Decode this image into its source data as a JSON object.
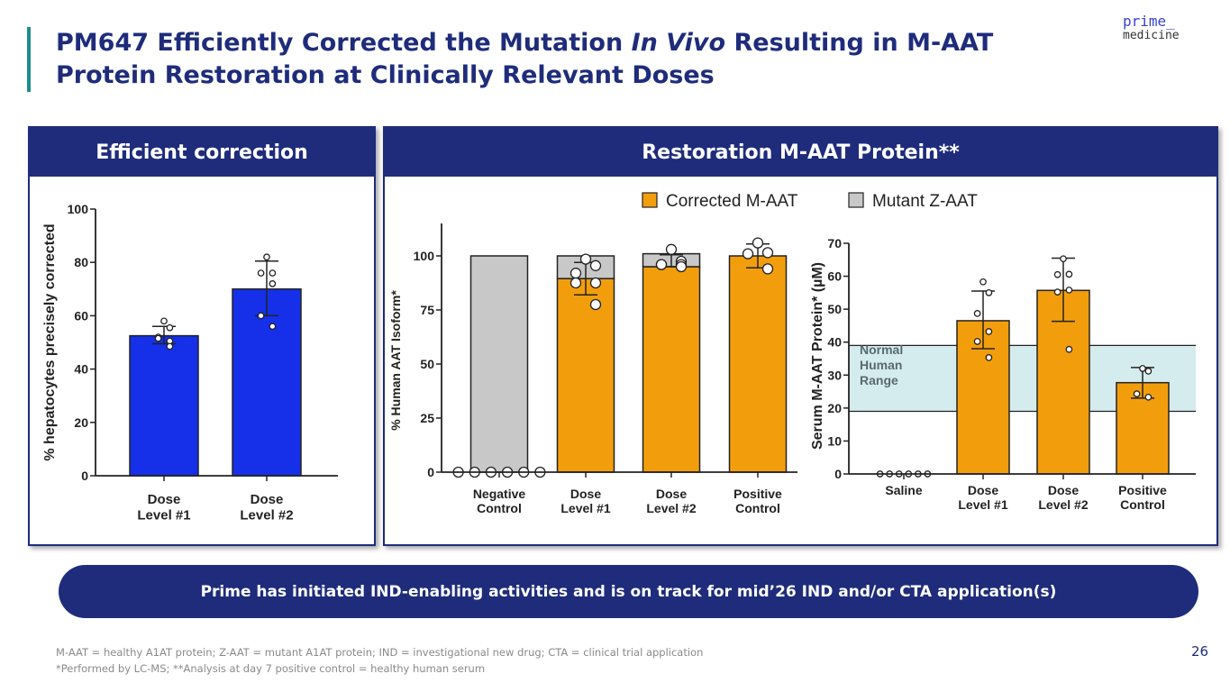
{
  "header": {
    "title_part1": "PM647 Efficiently Corrected the Mutation ",
    "title_italic": "In Vivo",
    "title_part2": " Resulting in M-AAT Protein Restoration at Clinically Relevant Doses",
    "logo_line1": "prime_",
    "logo_line2": "medicine"
  },
  "panels": {
    "left_title": "Efficient correction",
    "right_title": "Restoration M-AAT Protein**"
  },
  "banner": "Prime has initiated IND-enabling activities and is on track for mid’26 IND and/or CTA application(s)",
  "footnotes": [
    "M-AAT = healthy A1AT protein; Z-AAT = mutant A1AT protein; IND = investigational new drug; CTA = clinical trial application",
    "*Performed by LC-MS; **Analysis at day 7    positive control = healthy human serum"
  ],
  "page_number": "26",
  "colors": {
    "navy": "#1f2c7b",
    "blue_bar": "#1530e8",
    "orange": "#f29e0c",
    "gray": "#c8c8c8",
    "normal_range": "#d5ecee",
    "accent": "#1d8c8c"
  },
  "legend": [
    {
      "label": "Corrected M-AAT",
      "color": "#f29e0c"
    },
    {
      "label": "Mutant Z-AAT",
      "color": "#c8c8c8"
    }
  ],
  "chart_data": [
    {
      "type": "bar",
      "ylabel": "% hepatocytes precisely corrected",
      "ylim": [
        0,
        100
      ],
      "yticks": [
        0,
        20,
        40,
        60,
        80,
        100
      ],
      "categories": [
        "Dose\nLevel #1",
        "Dose\nLevel #2"
      ],
      "values": [
        52.5,
        70
      ],
      "error": [
        [
          49.5,
          56
        ],
        [
          60,
          80.5
        ]
      ],
      "points": [
        [
          58,
          55.5,
          52,
          50.5,
          51.5,
          48.5
        ],
        [
          82,
          76,
          76,
          72,
          60,
          56
        ]
      ],
      "color": "#1530e8"
    },
    {
      "type": "bar",
      "stacked": true,
      "ylabel": "% Human AAT Isoform*",
      "ylim": [
        0,
        115
      ],
      "yticks": [
        0,
        25,
        50,
        75,
        100
      ],
      "categories": [
        "Negative\nControl",
        "Dose\nLevel #1",
        "Dose\nLevel #2",
        "Positive\nControl"
      ],
      "series": [
        {
          "name": "Corrected M-AAT",
          "values": [
            0,
            89.5,
            95,
            100
          ]
        },
        {
          "name": "Mutant Z-AAT",
          "values": [
            100,
            10.5,
            6,
            0
          ]
        }
      ],
      "error": [
        null,
        [
          82,
          97
        ],
        [
          95,
          100.5
        ],
        [
          94.5,
          105.5
        ]
      ],
      "points": [
        [
          0,
          0,
          0,
          0,
          0,
          0
        ],
        [
          98.5,
          95.5,
          92,
          87.5,
          87.5,
          77.5
        ],
        [
          103,
          97.5,
          96,
          96,
          96,
          95
        ],
        [
          106,
          101.5,
          101,
          94
        ]
      ]
    },
    {
      "type": "bar",
      "ylabel": "Serum M-AAT Protein* (µM)",
      "ylim": [
        0,
        70
      ],
      "yticks": [
        0,
        10,
        20,
        30,
        40,
        50,
        60,
        70
      ],
      "categories": [
        "Saline",
        "Dose\nLevel #1",
        "Dose\nLevel #2",
        "Positive\nControl"
      ],
      "values": [
        0,
        46.5,
        55.7,
        27.7
      ],
      "error": [
        null,
        [
          38,
          55.5
        ],
        [
          46.3,
          65.5
        ],
        [
          23,
          32.3
        ]
      ],
      "points": [
        [
          0,
          0,
          0,
          0,
          0,
          0
        ],
        [
          58.3,
          55,
          48.7,
          43.2,
          40.2,
          35.3
        ],
        [
          65.3,
          60.6,
          60.5,
          55.8,
          55.2,
          37.8
        ],
        [
          32,
          31.2,
          24.3,
          23.3
        ]
      ],
      "band": {
        "label": "Normal\nHuman\nRange",
        "range": [
          19,
          39
        ]
      },
      "color": "#f29e0c"
    }
  ]
}
